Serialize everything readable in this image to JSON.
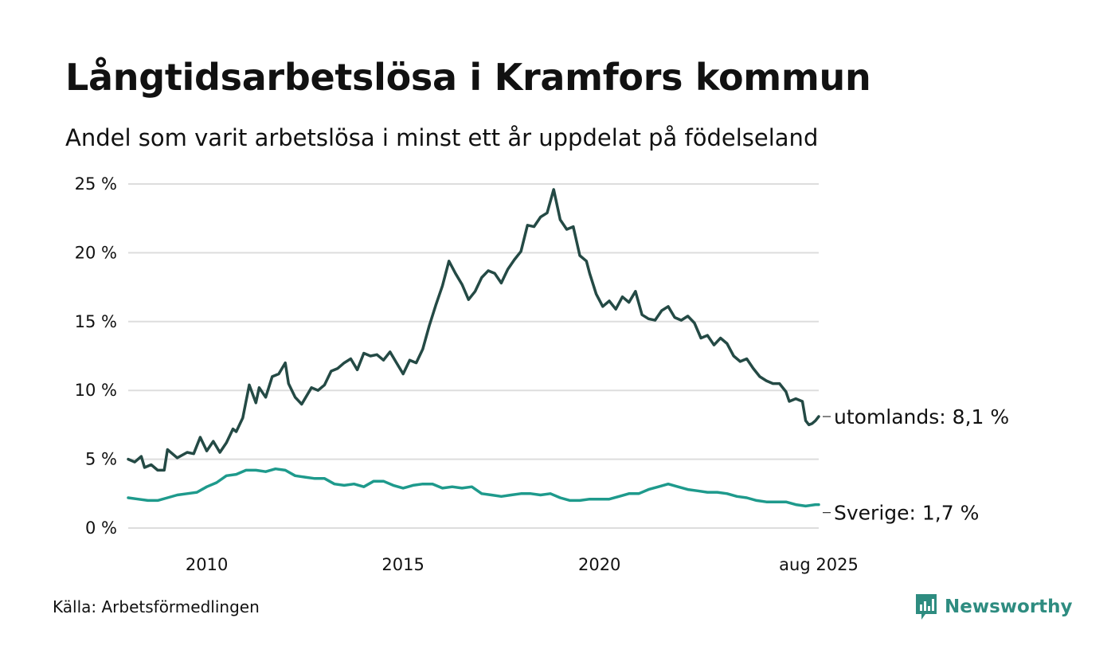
{
  "header": {
    "title": "Långtidsarbetslösa i Kramfors kommun",
    "subtitle": "Andel som varit arbetslösa i minst ett år uppdelat på födelseland"
  },
  "footer": {
    "source": "Källa: Arbetsförmedlingen",
    "brand": "Newsworthy"
  },
  "colors": {
    "utomlands": "#244a45",
    "sverige": "#1e9a8c",
    "grid": "#dddddd",
    "brand": "#2e8c80"
  },
  "chart_data": {
    "type": "line",
    "title": "Långtidsarbetslösa i Kramfors kommun",
    "subtitle": "Andel som varit arbetslösa i minst ett år uppdelat på födelseland",
    "xlim": [
      "2008-01",
      "2025-08"
    ],
    "ylim": [
      0,
      25
    ],
    "y_ticks": [
      0,
      5,
      10,
      15,
      20,
      25
    ],
    "y_tick_labels": [
      "0 %",
      "5 %",
      "10 %",
      "15 %",
      "20 %",
      "25 %"
    ],
    "x_ticks": [
      "2010-01",
      "2015-01",
      "2020-01",
      "2025-08"
    ],
    "x_tick_labels": [
      "2010",
      "2015",
      "2020",
      "aug 2025"
    ],
    "grid": true,
    "legend": "direct labels at line ends",
    "series": [
      {
        "name": "utomlands",
        "end_label": "utomlands: 8,1 %",
        "color": "#244a45",
        "points": [
          [
            "2008-01",
            5.0
          ],
          [
            "2008-03",
            4.8
          ],
          [
            "2008-05",
            5.2
          ],
          [
            "2008-06",
            4.4
          ],
          [
            "2008-08",
            4.6
          ],
          [
            "2008-10",
            4.2
          ],
          [
            "2008-12",
            4.2
          ],
          [
            "2009-01",
            5.7
          ],
          [
            "2009-04",
            5.1
          ],
          [
            "2009-07",
            5.5
          ],
          [
            "2009-09",
            5.4
          ],
          [
            "2009-11",
            6.6
          ],
          [
            "2010-01",
            5.6
          ],
          [
            "2010-03",
            6.3
          ],
          [
            "2010-05",
            5.5
          ],
          [
            "2010-07",
            6.2
          ],
          [
            "2010-09",
            7.2
          ],
          [
            "2010-10",
            7.0
          ],
          [
            "2010-12",
            8.0
          ],
          [
            "2011-02",
            10.4
          ],
          [
            "2011-04",
            9.1
          ],
          [
            "2011-05",
            10.2
          ],
          [
            "2011-07",
            9.5
          ],
          [
            "2011-09",
            11.0
          ],
          [
            "2011-11",
            11.2
          ],
          [
            "2012-01",
            12.0
          ],
          [
            "2012-02",
            10.5
          ],
          [
            "2012-04",
            9.5
          ],
          [
            "2012-06",
            9.0
          ],
          [
            "2012-09",
            10.2
          ],
          [
            "2012-11",
            10.0
          ],
          [
            "2013-01",
            10.4
          ],
          [
            "2013-03",
            11.4
          ],
          [
            "2013-05",
            11.6
          ],
          [
            "2013-07",
            12.0
          ],
          [
            "2013-09",
            12.3
          ],
          [
            "2013-11",
            11.5
          ],
          [
            "2014-01",
            12.7
          ],
          [
            "2014-03",
            12.5
          ],
          [
            "2014-05",
            12.6
          ],
          [
            "2014-07",
            12.2
          ],
          [
            "2014-09",
            12.8
          ],
          [
            "2014-11",
            12.0
          ],
          [
            "2015-01",
            11.2
          ],
          [
            "2015-03",
            12.2
          ],
          [
            "2015-05",
            12.0
          ],
          [
            "2015-07",
            13.0
          ],
          [
            "2015-09",
            14.7
          ],
          [
            "2015-11",
            16.2
          ],
          [
            "2016-01",
            17.6
          ],
          [
            "2016-03",
            19.4
          ],
          [
            "2016-05",
            18.5
          ],
          [
            "2016-07",
            17.7
          ],
          [
            "2016-09",
            16.6
          ],
          [
            "2016-11",
            17.2
          ],
          [
            "2017-01",
            18.2
          ],
          [
            "2017-03",
            18.7
          ],
          [
            "2017-05",
            18.5
          ],
          [
            "2017-07",
            17.8
          ],
          [
            "2017-09",
            18.8
          ],
          [
            "2017-11",
            19.5
          ],
          [
            "2018-01",
            20.1
          ],
          [
            "2018-03",
            22.0
          ],
          [
            "2018-05",
            21.9
          ],
          [
            "2018-07",
            22.6
          ],
          [
            "2018-09",
            22.9
          ],
          [
            "2018-11",
            24.6
          ],
          [
            "2019-01",
            22.4
          ],
          [
            "2019-03",
            21.7
          ],
          [
            "2019-05",
            21.9
          ],
          [
            "2019-07",
            19.8
          ],
          [
            "2019-09",
            19.4
          ],
          [
            "2019-10",
            18.5
          ],
          [
            "2019-12",
            17.0
          ],
          [
            "2020-02",
            16.1
          ],
          [
            "2020-04",
            16.5
          ],
          [
            "2020-06",
            15.9
          ],
          [
            "2020-08",
            16.8
          ],
          [
            "2020-10",
            16.4
          ],
          [
            "2020-12",
            17.2
          ],
          [
            "2021-02",
            15.5
          ],
          [
            "2021-04",
            15.2
          ],
          [
            "2021-06",
            15.1
          ],
          [
            "2021-08",
            15.8
          ],
          [
            "2021-10",
            16.1
          ],
          [
            "2021-12",
            15.3
          ],
          [
            "2022-02",
            15.1
          ],
          [
            "2022-04",
            15.4
          ],
          [
            "2022-06",
            14.9
          ],
          [
            "2022-08",
            13.8
          ],
          [
            "2022-10",
            14.0
          ],
          [
            "2022-12",
            13.3
          ],
          [
            "2023-02",
            13.8
          ],
          [
            "2023-04",
            13.4
          ],
          [
            "2023-06",
            12.5
          ],
          [
            "2023-08",
            12.1
          ],
          [
            "2023-10",
            12.3
          ],
          [
            "2023-12",
            11.6
          ],
          [
            "2024-02",
            11.0
          ],
          [
            "2024-04",
            10.7
          ],
          [
            "2024-06",
            10.5
          ],
          [
            "2024-08",
            10.5
          ],
          [
            "2024-10",
            9.9
          ],
          [
            "2024-11",
            9.2
          ],
          [
            "2025-01",
            9.4
          ],
          [
            "2025-03",
            9.2
          ],
          [
            "2025-04",
            7.8
          ],
          [
            "2025-05",
            7.5
          ],
          [
            "2025-06",
            7.6
          ],
          [
            "2025-07",
            7.8
          ],
          [
            "2025-08",
            8.1
          ]
        ]
      },
      {
        "name": "Sverige",
        "end_label": "Sverige: 1,7 %",
        "color": "#1e9a8c",
        "points": [
          [
            "2008-01",
            2.2
          ],
          [
            "2008-04",
            2.1
          ],
          [
            "2008-07",
            2.0
          ],
          [
            "2008-10",
            2.0
          ],
          [
            "2009-01",
            2.2
          ],
          [
            "2009-04",
            2.4
          ],
          [
            "2009-07",
            2.5
          ],
          [
            "2009-10",
            2.6
          ],
          [
            "2010-01",
            3.0
          ],
          [
            "2010-04",
            3.3
          ],
          [
            "2010-07",
            3.8
          ],
          [
            "2010-10",
            3.9
          ],
          [
            "2011-01",
            4.2
          ],
          [
            "2011-04",
            4.2
          ],
          [
            "2011-07",
            4.1
          ],
          [
            "2011-10",
            4.3
          ],
          [
            "2012-01",
            4.2
          ],
          [
            "2012-04",
            3.8
          ],
          [
            "2012-07",
            3.7
          ],
          [
            "2012-10",
            3.6
          ],
          [
            "2013-01",
            3.6
          ],
          [
            "2013-04",
            3.2
          ],
          [
            "2013-07",
            3.1
          ],
          [
            "2013-10",
            3.2
          ],
          [
            "2014-01",
            3.0
          ],
          [
            "2014-04",
            3.4
          ],
          [
            "2014-07",
            3.4
          ],
          [
            "2014-10",
            3.1
          ],
          [
            "2015-01",
            2.9
          ],
          [
            "2015-04",
            3.1
          ],
          [
            "2015-07",
            3.2
          ],
          [
            "2015-10",
            3.2
          ],
          [
            "2016-01",
            2.9
          ],
          [
            "2016-04",
            3.0
          ],
          [
            "2016-07",
            2.9
          ],
          [
            "2016-10",
            3.0
          ],
          [
            "2017-01",
            2.5
          ],
          [
            "2017-04",
            2.4
          ],
          [
            "2017-07",
            2.3
          ],
          [
            "2017-10",
            2.4
          ],
          [
            "2018-01",
            2.5
          ],
          [
            "2018-04",
            2.5
          ],
          [
            "2018-07",
            2.4
          ],
          [
            "2018-10",
            2.5
          ],
          [
            "2019-01",
            2.2
          ],
          [
            "2019-04",
            2.0
          ],
          [
            "2019-07",
            2.0
          ],
          [
            "2019-10",
            2.1
          ],
          [
            "2020-01",
            2.1
          ],
          [
            "2020-04",
            2.1
          ],
          [
            "2020-07",
            2.3
          ],
          [
            "2020-10",
            2.5
          ],
          [
            "2021-01",
            2.5
          ],
          [
            "2021-04",
            2.8
          ],
          [
            "2021-07",
            3.0
          ],
          [
            "2021-10",
            3.2
          ],
          [
            "2022-01",
            3.0
          ],
          [
            "2022-04",
            2.8
          ],
          [
            "2022-07",
            2.7
          ],
          [
            "2022-10",
            2.6
          ],
          [
            "2023-01",
            2.6
          ],
          [
            "2023-04",
            2.5
          ],
          [
            "2023-07",
            2.3
          ],
          [
            "2023-10",
            2.2
          ],
          [
            "2024-01",
            2.0
          ],
          [
            "2024-04",
            1.9
          ],
          [
            "2024-07",
            1.9
          ],
          [
            "2024-10",
            1.9
          ],
          [
            "2025-01",
            1.7
          ],
          [
            "2025-04",
            1.6
          ],
          [
            "2025-07",
            1.7
          ],
          [
            "2025-08",
            1.7
          ]
        ]
      }
    ]
  }
}
